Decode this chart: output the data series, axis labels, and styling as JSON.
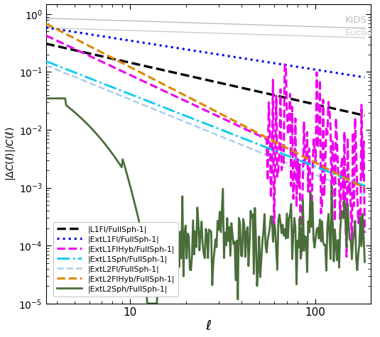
{
  "title": "",
  "xlabel": "$\\ell$",
  "ylabel": "$|\\Delta C(\\ell)|/C(\\ell)$",
  "xlim": [
    3.5,
    200
  ],
  "ylim": [
    1e-05,
    1.5
  ],
  "kids_label": "KiDS",
  "euclid_label": "Euclid",
  "legend_entries": [
    "|L1Fl/FullSph-1|",
    "|ExtL1Fl/FullSph-1|",
    "|ExtL1FlHyb/FullSph-1|",
    "|ExtL1Sph/FullSph-1|",
    "|ExtL2Fl/FullSph-1|",
    "|ExtL2FlHyb/FullSph-1|",
    "|ExtL2Sph/FullSph-1|"
  ],
  "line_colors": [
    "#000000",
    "#0000ee",
    "#ee00ee",
    "#00ccee",
    "#aaccee",
    "#dd8800",
    "#4a6e3a"
  ],
  "line_styles": [
    "--",
    ":",
    "--",
    "-.",
    "--",
    "--",
    "-"
  ],
  "line_widths": [
    2.4,
    2.2,
    2.2,
    2.0,
    1.8,
    2.2,
    2.0
  ],
  "kids_color": "#bbbbbb",
  "euclid_color": "#cccccc"
}
